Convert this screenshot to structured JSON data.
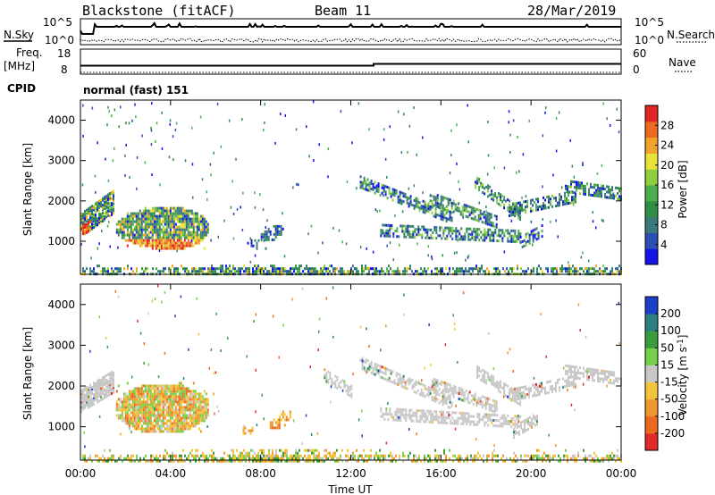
{
  "header": {
    "station": "Blackstone (fitACF)",
    "beam": "Beam 11",
    "date": "28/Mar/2019"
  },
  "sky_panel": {
    "left_label": "N.Sky",
    "right_label": "N.Search",
    "left_ticks": [
      "10^5",
      "10^0"
    ],
    "right_ticks": [
      "10^5",
      "10^0"
    ]
  },
  "freq_panel": {
    "left_label_1": "Freq.",
    "left_label_2": "[MHz]",
    "right_label": "Nave",
    "left_ticks": [
      "18",
      "8"
    ],
    "right_ticks": [
      "60",
      "0"
    ]
  },
  "cpid": {
    "label": "CPID",
    "value": "normal (fast) 151"
  },
  "chart_data": [
    {
      "type": "heatmap",
      "title": "",
      "ylabel": "Slant Range [km]",
      "ylim": [
        180,
        4500
      ],
      "yticks": [
        1000,
        2000,
        3000,
        4000
      ],
      "colorbar": {
        "label": "Power [dB]",
        "ticks": [
          "4",
          "8",
          "12",
          "16",
          "20",
          "24",
          "28"
        ],
        "colors": [
          "#1414e6",
          "#2a50b4",
          "#3a7a7a",
          "#2f8f45",
          "#4caf4c",
          "#8fce3c",
          "#e8e23a",
          "#f2a32c",
          "#ec6a22",
          "#e02525"
        ]
      },
      "regions": [
        {
          "name": "echo-0030-0130",
          "t": [
            0.0,
            1.5
          ],
          "range_km": [
            1300,
            2200
          ]
        },
        {
          "name": "echo-0130-0540",
          "t": [
            1.5,
            5.7
          ],
          "range_km": [
            900,
            1800
          ]
        },
        {
          "name": "echo-0740-0900",
          "t": [
            7.6,
            9.0
          ],
          "range_km": [
            950,
            1450
          ]
        },
        {
          "name": "echo-1230-2400",
          "t": [
            12.3,
            24.0
          ],
          "range_km": [
            900,
            2600
          ]
        },
        {
          "name": "near-range",
          "t": [
            0.0,
            24.0
          ],
          "range_km": [
            180,
            500
          ]
        }
      ]
    },
    {
      "type": "heatmap",
      "title": "",
      "xlabel": "Time UT",
      "ylabel": "Slant Range [km]",
      "ylim": [
        180,
        4500
      ],
      "yticks": [
        1000,
        2000,
        3000,
        4000
      ],
      "xticks": [
        "00:00",
        "04:00",
        "08:00",
        "12:00",
        "16:00",
        "20:00",
        "00:00"
      ],
      "colorbar": {
        "label": "Velocity [m s^-1]",
        "ticks": [
          "200",
          "100",
          "50",
          "15",
          "-15",
          "-50",
          "-100",
          "-200"
        ],
        "colors": [
          "#1d3fc8",
          "#2b7f7f",
          "#3c9b3c",
          "#76d04a",
          "#c8c8c8",
          "#f2c43a",
          "#f0962e",
          "#ea6a20",
          "#e02a2a"
        ]
      },
      "regions": [
        {
          "name": "echo-0000-0130",
          "t": [
            0.0,
            1.5
          ],
          "range_km": [
            1500,
            2300
          ]
        },
        {
          "name": "echo-0130-0540",
          "t": [
            1.5,
            5.7
          ],
          "range_km": [
            900,
            2100
          ]
        },
        {
          "name": "echo-0730-0930",
          "t": [
            7.3,
            9.3
          ],
          "range_km": [
            900,
            1400
          ]
        },
        {
          "name": "echo-1230-2400",
          "t": [
            12.3,
            24.0
          ],
          "range_km": [
            850,
            2600
          ]
        },
        {
          "name": "near-range",
          "t": [
            0.0,
            24.0
          ],
          "range_km": [
            180,
            500
          ]
        }
      ]
    }
  ]
}
